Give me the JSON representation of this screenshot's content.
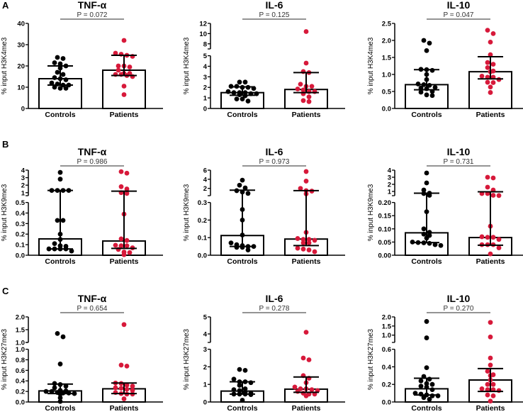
{
  "panel_labels": [
    "A",
    "B",
    "C"
  ],
  "colors": {
    "controls": "#000000",
    "patients": "#d7193a",
    "axis": "#000000",
    "p_line": "#555555"
  },
  "chart_data": [
    {
      "type": "scatter",
      "row": 0,
      "col": 0,
      "title": "TNF-α",
      "p_value": "P = 0.072",
      "ylabel": "% input H3K4me3",
      "categories": [
        "Controls",
        "Patients"
      ],
      "axis": {
        "lower": {
          "min": 0,
          "max": 40,
          "ticks": [
            "0",
            "10",
            "20",
            "30",
            "40"
          ]
        },
        "upper": null
      },
      "series": [
        {
          "name": "Controls",
          "median": 14,
          "iqr": [
            11,
            20
          ],
          "points": [
            23.5,
            24,
            21.5,
            21,
            20,
            19,
            17,
            16,
            14.5,
            14,
            13.5,
            12,
            11.5,
            11,
            11,
            10,
            9.5,
            9.5
          ]
        },
        {
          "name": "Patients",
          "median": 18,
          "iqr": [
            15.5,
            25
          ],
          "points": [
            32,
            26,
            25.5,
            25,
            24.5,
            20,
            20,
            19.5,
            18,
            16.5,
            16.5,
            16,
            16,
            15.5,
            15,
            10.5,
            6.5
          ]
        }
      ]
    },
    {
      "type": "scatter",
      "row": 0,
      "col": 1,
      "title": "IL-6",
      "p_value": "P = 0.125",
      "ylabel": "% input H3K4me3",
      "categories": [
        "Controls",
        "Patients"
      ],
      "axis": {
        "lower": {
          "min": 0,
          "max": 5,
          "ticks": [
            "0",
            "1",
            "2",
            "3",
            "4",
            "5"
          ]
        },
        "upper": {
          "min": 7,
          "max": 12,
          "ticks": [
            "8",
            "10",
            "12"
          ]
        }
      },
      "series": [
        {
          "name": "Controls",
          "median": 1.5,
          "iqr": [
            1.25,
            2.05
          ],
          "points": [
            2.5,
            2.5,
            2.1,
            2.1,
            2.0,
            2.0,
            1.9,
            1.6,
            1.5,
            1.5,
            1.5,
            1.4,
            1.4,
            1.3,
            1.2,
            0.9,
            0.9,
            0.7
          ]
        },
        {
          "name": "Patients",
          "median": 1.8,
          "iqr": [
            1.5,
            3.4
          ],
          "points": [
            10.4,
            4.3,
            3.5,
            3.4,
            2.3,
            2.1,
            2.1,
            1.85,
            1.75,
            1.6,
            1.6,
            1.4,
            1.1,
            0.75,
            0.65
          ]
        }
      ]
    },
    {
      "type": "scatter",
      "row": 0,
      "col": 2,
      "title": "IL-10",
      "p_value": "P = 0.047",
      "ylabel": "% input H3K4me3",
      "categories": [
        "Controls",
        "Patients"
      ],
      "axis": {
        "lower": {
          "min": 0,
          "max": 2.5,
          "ticks": [
            "0.0",
            "0.5",
            "1.0",
            "1.5",
            "2.0",
            "2.5"
          ]
        },
        "upper": null
      },
      "series": [
        {
          "name": "Controls",
          "median": 0.7,
          "iqr": [
            0.55,
            1.14
          ],
          "points": [
            2.0,
            1.92,
            1.7,
            1.15,
            1.14,
            1.12,
            1.0,
            0.85,
            0.72,
            0.7,
            0.68,
            0.62,
            0.6,
            0.58,
            0.5,
            0.48,
            0.4,
            0.38
          ]
        },
        {
          "name": "Patients",
          "median": 1.08,
          "iqr": [
            0.87,
            1.52
          ],
          "points": [
            2.3,
            2.2,
            1.95,
            1.58,
            1.35,
            1.3,
            1.2,
            1.1,
            1.08,
            0.95,
            0.92,
            0.92,
            0.85,
            0.77,
            0.76,
            0.63,
            0.47
          ]
        }
      ]
    },
    {
      "type": "scatter",
      "row": 1,
      "col": 0,
      "title": "TNF-α",
      "p_value": "P = 0.986",
      "ylabel": "% input H3K9me3",
      "categories": [
        "Controls",
        "Patients"
      ],
      "axis": {
        "lower": {
          "min": 0,
          "max": 0.5,
          "ticks": [
            "0.0",
            "0.1",
            "0.2",
            "0.3",
            "0.4",
            "0.5"
          ]
        },
        "upper": {
          "min": 0.6,
          "max": 4,
          "ticks": [
            "1",
            "2",
            "3",
            "4"
          ]
        }
      },
      "series": [
        {
          "name": "Controls",
          "median": 0.155,
          "iqr": [
            0.06,
            1.3
          ],
          "points": [
            3.7,
            2.8,
            1.3,
            1.3,
            1.3,
            1.3,
            0.33,
            0.33,
            0.2,
            0.15,
            0.11,
            0.09,
            0.085,
            0.06,
            0.06,
            0.06,
            0.06,
            0.04
          ]
        },
        {
          "name": "Patients",
          "median": 0.135,
          "iqr": [
            0.065,
            1.2
          ],
          "points": [
            3.8,
            3.6,
            1.8,
            1.5,
            1.0,
            0.9,
            0.39,
            0.155,
            0.14,
            0.095,
            0.09,
            0.09,
            0.07,
            0.055,
            0.03,
            0.025,
            0.005
          ]
        }
      ]
    },
    {
      "type": "scatter",
      "row": 1,
      "col": 1,
      "title": "IL-6",
      "p_value": "P = 0.973",
      "ylabel": "% input H3K9me3",
      "categories": [
        "Controls",
        "Patients"
      ],
      "axis": {
        "lower": {
          "min": 0,
          "max": 0.3,
          "ticks": [
            "0.0",
            "0.1",
            "0.2",
            "0.3"
          ]
        },
        "upper": {
          "min": 0.4,
          "max": 6,
          "ticks": [
            "2",
            "4",
            "6"
          ]
        }
      },
      "series": [
        {
          "name": "Controls",
          "median": 0.112,
          "iqr": [
            0.05,
            1.6
          ],
          "points": [
            3.8,
            2.7,
            2.1,
            1.5,
            1.2,
            0.9,
            0.26,
            0.2,
            0.115,
            0.07,
            0.06,
            0.055,
            0.05,
            0.05,
            0.045,
            0.045,
            0.03
          ]
        },
        {
          "name": "Patients",
          "median": 0.092,
          "iqr": [
            0.055,
            1.5
          ],
          "points": [
            5.7,
            3.6,
            2.0,
            1.5,
            1.4,
            0.8,
            0.13,
            0.095,
            0.09,
            0.09,
            0.085,
            0.07,
            0.07,
            0.04,
            0.035,
            0.03,
            0.02
          ]
        }
      ]
    },
    {
      "type": "scatter",
      "row": 1,
      "col": 2,
      "title": "IL-10",
      "p_value": "P = 0.731",
      "ylabel": "% input H3K9me3",
      "categories": [
        "Controls",
        "Patients"
      ],
      "axis": {
        "lower": {
          "min": 0,
          "max": 0.2,
          "ticks": [
            "0.00",
            "0.05",
            "0.10",
            "0.15",
            "0.20"
          ]
        },
        "upper": {
          "min": 0.4,
          "max": 4,
          "ticks": [
            "1",
            "2",
            "3",
            "4"
          ]
        }
      },
      "series": [
        {
          "name": "Controls",
          "median": 0.085,
          "iqr": [
            0.048,
            0.75
          ],
          "points": [
            3.6,
            2.2,
            1.2,
            0.75,
            0.7,
            0.45,
            0.165,
            0.1,
            0.087,
            0.08,
            0.075,
            0.065,
            0.05,
            0.048,
            0.047,
            0.045,
            0.04,
            0.037
          ]
        },
        {
          "name": "Patients",
          "median": 0.067,
          "iqr": [
            0.038,
            0.95
          ],
          "points": [
            3.0,
            2.9,
            1.6,
            1.2,
            0.7,
            0.7,
            0.45,
            0.42,
            0.11,
            0.07,
            0.068,
            0.068,
            0.06,
            0.04,
            0.04,
            0.04,
            0.028,
            0.005
          ]
        }
      ]
    },
    {
      "type": "scatter",
      "row": 2,
      "col": 0,
      "title": "TNF-α",
      "p_value": "P = 0.654",
      "ylabel": "% input H3K27me3",
      "categories": [
        "Controls",
        "Patients"
      ],
      "axis": {
        "lower": {
          "min": 0,
          "max": 1.0,
          "ticks": [
            "0.0",
            "0.2",
            "0.4",
            "0.6",
            "0.8",
            "1.0"
          ]
        },
        "upper": {
          "min": 1.0,
          "max": 2.0,
          "ticks": [
            "1.0",
            "1.5",
            "2.0"
          ]
        }
      },
      "series": [
        {
          "name": "Controls",
          "median": 0.21,
          "iqr": [
            0.16,
            0.34
          ],
          "points": [
            1.35,
            1.22,
            0.72,
            0.35,
            0.33,
            0.3,
            0.27,
            0.22,
            0.21,
            0.2,
            0.2,
            0.18,
            0.17,
            0.17,
            0.16,
            0.15,
            0.08,
            0.01
          ]
        },
        {
          "name": "Patients",
          "median": 0.25,
          "iqr": [
            0.16,
            0.36
          ],
          "points": [
            1.7,
            0.7,
            0.68,
            0.36,
            0.35,
            0.32,
            0.3,
            0.27,
            0.26,
            0.24,
            0.22,
            0.18,
            0.16,
            0.15,
            0.15,
            0.06
          ]
        }
      ]
    },
    {
      "type": "scatter",
      "row": 2,
      "col": 1,
      "title": "IL-6",
      "p_value": "P = 0.278",
      "ylabel": "% input H3K27me3",
      "categories": [
        "Controls",
        "Patients"
      ],
      "axis": {
        "lower": {
          "min": 0,
          "max": 3,
          "ticks": [
            "0",
            "1",
            "2",
            "3"
          ]
        },
        "upper": {
          "min": 3.5,
          "max": 5,
          "ticks": [
            "4",
            "5"
          ]
        }
      },
      "series": [
        {
          "name": "Controls",
          "median": 0.62,
          "iqr": [
            0.45,
            1.15
          ],
          "points": [
            1.85,
            1.8,
            1.3,
            1.15,
            1.15,
            1.1,
            0.95,
            0.75,
            0.7,
            0.65,
            0.55,
            0.5,
            0.45,
            0.45,
            0.45,
            0.42,
            0.1
          ]
        },
        {
          "name": "Patients",
          "median": 0.73,
          "iqr": [
            0.55,
            1.42
          ],
          "points": [
            4.1,
            2.5,
            2.4,
            1.5,
            1.35,
            1.1,
            0.85,
            0.75,
            0.75,
            0.7,
            0.65,
            0.6,
            0.5,
            0.45,
            0.45,
            0.35
          ]
        }
      ]
    },
    {
      "type": "scatter",
      "row": 2,
      "col": 2,
      "title": "IL-10",
      "p_value": "P = 0.270",
      "ylabel": "% input H3K27me3",
      "categories": [
        "Controls",
        "Patients"
      ],
      "axis": {
        "lower": {
          "min": 0,
          "max": 0.6,
          "ticks": [
            "0.0",
            "0.2",
            "0.4",
            "0.6"
          ]
        },
        "upper": {
          "min": 0.6,
          "max": 2.0,
          "ticks": [
            "1.0",
            "1.5",
            "2.0"
          ]
        }
      },
      "series": [
        {
          "name": "Controls",
          "median": 0.15,
          "iqr": [
            0.08,
            0.27
          ],
          "points": [
            1.75,
            0.85,
            0.39,
            0.29,
            0.26,
            0.24,
            0.21,
            0.2,
            0.18,
            0.17,
            0.14,
            0.1,
            0.09,
            0.08,
            0.07,
            0.07,
            0.05,
            0.03
          ]
        },
        {
          "name": "Patients",
          "median": 0.25,
          "iqr": [
            0.12,
            0.38
          ],
          "points": [
            1.7,
            0.9,
            0.5,
            0.42,
            0.35,
            0.31,
            0.3,
            0.25,
            0.2,
            0.2,
            0.15,
            0.14,
            0.14,
            0.13,
            0.08,
            0.07,
            0.01
          ]
        }
      ]
    }
  ]
}
